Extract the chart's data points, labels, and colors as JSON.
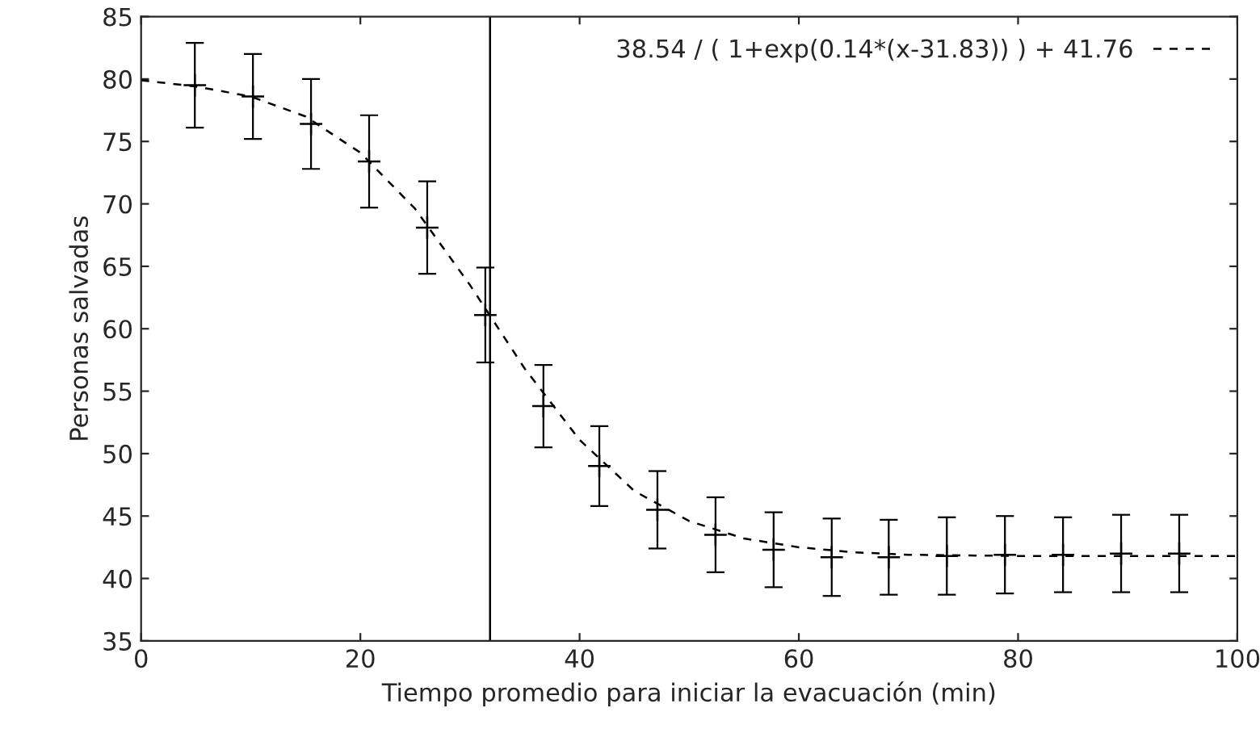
{
  "chart_data": {
    "type": "scatter",
    "xlabel": "Tiempo promedio para iniciar la evacuación (min)",
    "ylabel": "Personas salvadas",
    "xlim": [
      0,
      100
    ],
    "ylim": [
      35,
      85
    ],
    "xticks": [
      0,
      20,
      40,
      60,
      80,
      100
    ],
    "yticks": [
      35,
      40,
      45,
      50,
      55,
      60,
      65,
      70,
      75,
      80,
      85
    ],
    "grid": false,
    "legend": "top right",
    "series": [
      {
        "color": "#000000",
        "marker": "cross",
        "x": [
          4.9,
          10.2,
          15.5,
          20.8,
          26.1,
          31.4,
          36.7,
          41.8,
          47.1,
          52.4,
          57.7,
          63.0,
          68.2,
          73.5,
          78.8,
          84.1,
          89.4,
          94.7
        ],
        "values": [
          79.5,
          78.6,
          76.4,
          73.4,
          68.1,
          61.1,
          53.8,
          49.0,
          45.5,
          43.5,
          42.3,
          41.7,
          41.7,
          41.8,
          41.9,
          41.9,
          42.0,
          42.0
        ],
        "errors": [
          3.4,
          3.4,
          3.6,
          3.7,
          3.7,
          3.8,
          3.3,
          3.2,
          3.1,
          3.0,
          3.0,
          3.1,
          3.0,
          3.1,
          3.1,
          3.0,
          3.1,
          3.1
        ]
      },
      {
        "type": "line",
        "name": "38.54 / ( 1+exp(0.14*(x-31.83)) ) + 41.76",
        "color": "#000000",
        "line_style": "dashed",
        "x": [
          0,
          5,
          10,
          15,
          20,
          25,
          30,
          35,
          40,
          45,
          50,
          55,
          60,
          65,
          70,
          80,
          90,
          100
        ],
        "values": [
          79.9,
          79.4,
          78.6,
          77.0,
          74.1,
          69.6,
          63.5,
          56.8,
          51.1,
          47.0,
          44.6,
          43.2,
          42.5,
          42.1,
          41.9,
          41.8,
          41.8,
          41.8
        ]
      }
    ],
    "ref_lines": [
      {
        "axis": "x",
        "value": 31.83,
        "color": "#000000",
        "line_style": "solid"
      }
    ]
  }
}
